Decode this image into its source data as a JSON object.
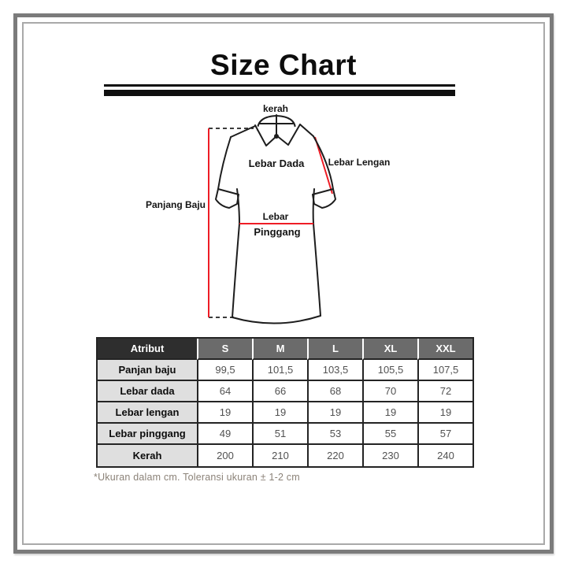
{
  "page": {
    "title": "Size Chart",
    "footnote": "*Ukuran dalam cm. Toleransi ukuran ± 1-2 cm"
  },
  "diagram": {
    "labels": {
      "collar": "kerah",
      "chest": "Lebar Dada",
      "sleeve": "Lebar Lengan",
      "length": "Panjang Baju",
      "waist_line1": "Lebar",
      "waist_line2": "Pinggang"
    },
    "colors": {
      "measurement_line": "#ee1c25",
      "outline": "#1d1d1d",
      "dashed_extension": "#3c3c3c"
    }
  },
  "table": {
    "header": [
      "Atribut",
      "S",
      "M",
      "L",
      "XL",
      "XXL"
    ],
    "rows": [
      {
        "label": "Panjan baju",
        "values": [
          "99,5",
          "101,5",
          "103,5",
          "105,5",
          "107,5"
        ]
      },
      {
        "label": "Lebar dada",
        "values": [
          "64",
          "66",
          "68",
          "70",
          "72"
        ]
      },
      {
        "label": "Lebar lengan",
        "values": [
          "19",
          "19",
          "19",
          "19",
          "19"
        ]
      },
      {
        "label": "Lebar pinggang",
        "values": [
          "49",
          "51",
          "53",
          "55",
          "57"
        ]
      },
      {
        "label": "Kerah",
        "values": [
          "200",
          "210",
          "220",
          "230",
          "240"
        ]
      }
    ]
  },
  "colors": {
    "frame_outer": "#7b7b7b",
    "frame_inner": "#a9a9a9",
    "table_header_dark": "#2e2e2e",
    "table_header_gray": "#6b6b6b",
    "table_row_label_bg": "#dfdfdf",
    "accent_red": "#ee1c25"
  }
}
